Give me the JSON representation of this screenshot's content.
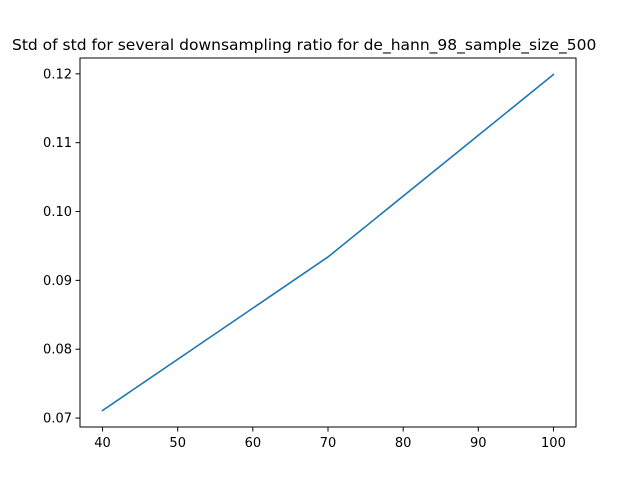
{
  "chart_data": {
    "type": "line",
    "title": "Std of std for several downsampling ratio for de_hann_98_sample_size_500",
    "xlabel": "",
    "ylabel": "",
    "x": [
      40,
      70,
      100
    ],
    "series": [
      {
        "values": [
          0.0711,
          0.0934,
          0.1199
        ],
        "color": "#1f77b4"
      }
    ],
    "xlim": [
      37,
      103
    ],
    "ylim": [
      0.0687,
      0.1223
    ],
    "xticks": [
      40,
      50,
      60,
      70,
      80,
      90,
      100
    ],
    "xtick_labels": [
      "40",
      "50",
      "60",
      "70",
      "80",
      "90",
      "100"
    ],
    "yticks": [
      0.07,
      0.08,
      0.09,
      0.1,
      0.11,
      0.12
    ],
    "ytick_labels": [
      "0.07",
      "0.08",
      "0.09",
      "0.10",
      "0.11",
      "0.12"
    ],
    "grid": false,
    "legend": "none"
  }
}
